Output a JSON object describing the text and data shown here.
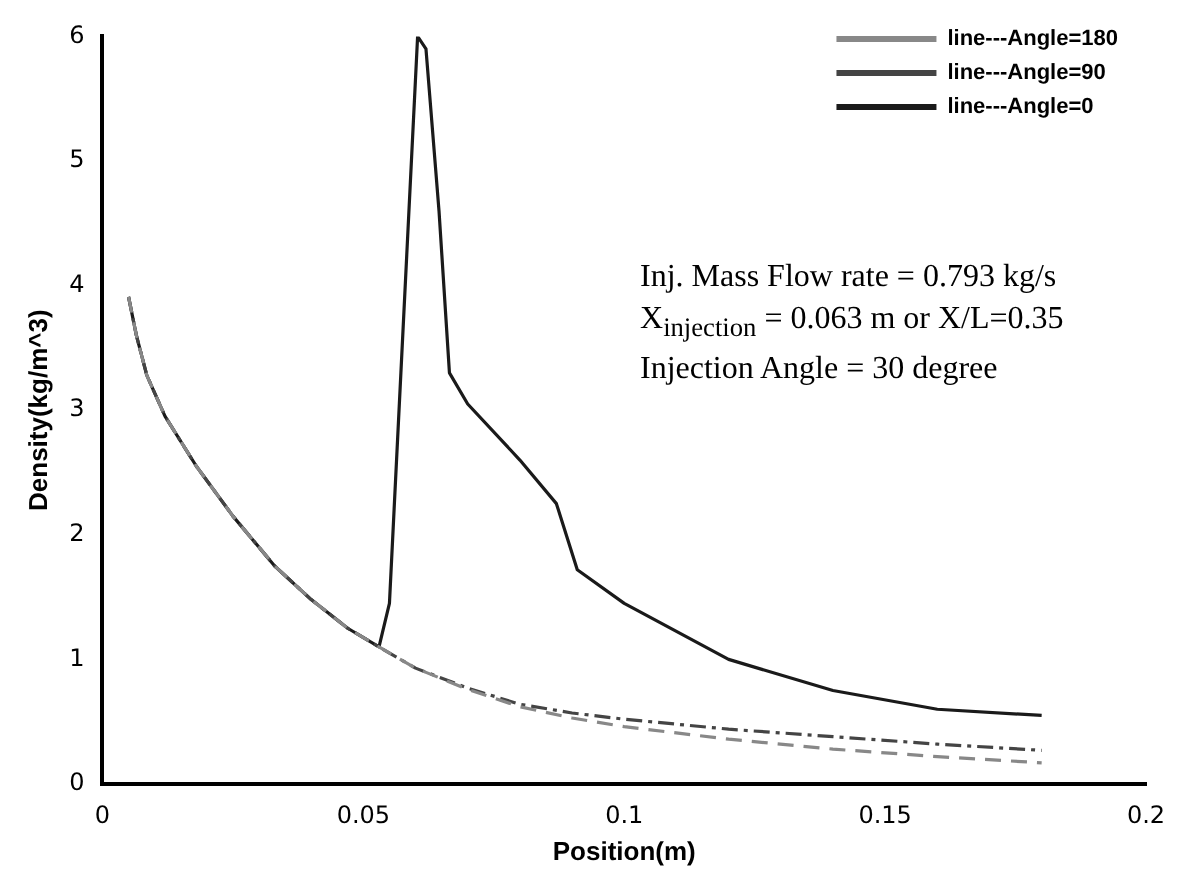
{
  "chart_data": {
    "type": "line",
    "xlabel": "Position(m)",
    "ylabel": "Density(kg/m^3)",
    "xlim": [
      0,
      0.2
    ],
    "xticks": [
      0,
      0.05,
      0.1,
      0.15,
      0.2
    ],
    "ylim": [
      0,
      6
    ],
    "yticks": [
      0,
      1,
      2,
      3,
      4,
      5,
      6
    ],
    "grid": false,
    "legend": "top right",
    "marker": "none",
    "annotations": [
      "Inj. Mass Flow rate = 0.793 kg/s",
      "X$_{injection}$ = 0.063 m or  X/L=0.35",
      "Injection Angle = 30 degree"
    ],
    "series": [
      {
        "name": "line---Angle=180",
        "color": "#888888",
        "line_style": "dashed",
        "x": [
          0.005,
          0.0065,
          0.0085,
          0.012,
          0.018,
          0.025,
          0.033,
          0.04,
          0.047,
          0.053,
          0.06,
          0.07,
          0.08,
          0.09,
          0.1,
          0.12,
          0.14,
          0.16,
          0.18
        ],
        "values": [
          3.91,
          3.6,
          3.28,
          2.95,
          2.55,
          2.15,
          1.75,
          1.48,
          1.25,
          1.1,
          0.93,
          0.76,
          0.62,
          0.53,
          0.46,
          0.36,
          0.28,
          0.22,
          0.17
        ]
      },
      {
        "name": "line---Angle=90",
        "color": "#444444",
        "line_style": "dashdot",
        "x": [
          0.005,
          0.0065,
          0.0085,
          0.012,
          0.018,
          0.025,
          0.033,
          0.04,
          0.047,
          0.053,
          0.06,
          0.07,
          0.08,
          0.09,
          0.1,
          0.12,
          0.14,
          0.16,
          0.18
        ],
        "values": [
          3.91,
          3.6,
          3.28,
          2.95,
          2.55,
          2.15,
          1.75,
          1.48,
          1.25,
          1.1,
          0.93,
          0.77,
          0.64,
          0.57,
          0.52,
          0.44,
          0.38,
          0.32,
          0.27
        ]
      },
      {
        "name": "line---Angle=0",
        "color": "#1a1a1a",
        "line_style": "solid",
        "x": [
          0.005,
          0.0065,
          0.0085,
          0.012,
          0.018,
          0.025,
          0.033,
          0.04,
          0.047,
          0.053,
          0.055,
          0.0604,
          0.062,
          0.0645,
          0.0665,
          0.07,
          0.08,
          0.087,
          0.091,
          0.1,
          0.12,
          0.14,
          0.16,
          0.18
        ],
        "values": [
          3.91,
          3.6,
          3.28,
          2.95,
          2.55,
          2.15,
          1.75,
          1.48,
          1.25,
          1.1,
          1.45,
          6,
          5.9,
          4.6,
          3.3,
          3.05,
          2.6,
          2.25,
          1.72,
          1.45,
          1.0,
          0.75,
          0.6,
          0.55
        ]
      }
    ]
  }
}
